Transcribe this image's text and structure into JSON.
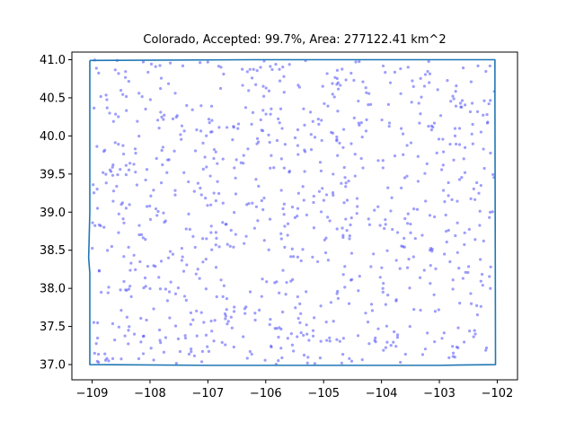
{
  "chart_data": {
    "type": "scatter",
    "title": "Colorado, Accepted: 99.7%, Area: 277122.41 km^2",
    "xlabel": "",
    "ylabel": "",
    "xlim": [
      -109.35,
      -101.65
    ],
    "ylim": [
      36.8,
      41.1
    ],
    "x_ticks": [
      -109,
      -108,
      -107,
      -106,
      -105,
      -104,
      -103,
      -102
    ],
    "y_ticks": [
      37.0,
      37.5,
      38.0,
      38.5,
      39.0,
      39.5,
      40.0,
      40.5,
      41.0
    ],
    "x_tick_labels": [
      "−109",
      "−108",
      "−107",
      "−106",
      "−105",
      "−104",
      "−103",
      "−102"
    ],
    "y_tick_labels": [
      "37.0",
      "37.5",
      "38.0",
      "38.5",
      "39.0",
      "39.5",
      "40.0",
      "40.5",
      "41.0"
    ],
    "grid": false,
    "boundary": {
      "color": "#1f77b4",
      "x": [
        -109.04,
        -106.2,
        -104.0,
        -102.04,
        -102.04,
        -102.03,
        -103.0,
        -105.0,
        -107.0,
        -109.04,
        -109.04,
        -109.06,
        -109.04,
        -109.04
      ],
      "y": [
        40.99,
        41.0,
        41.0,
        41.0,
        40.5,
        37.0,
        36.99,
        36.99,
        36.99,
        37.0,
        38.2,
        38.4,
        39.0,
        40.99
      ]
    },
    "points": {
      "color": "#4f4ff7",
      "count": 900,
      "x_range": [
        -109.0,
        -102.05
      ],
      "y_range": [
        37.0,
        41.0
      ],
      "distribution": "uniform random"
    }
  }
}
